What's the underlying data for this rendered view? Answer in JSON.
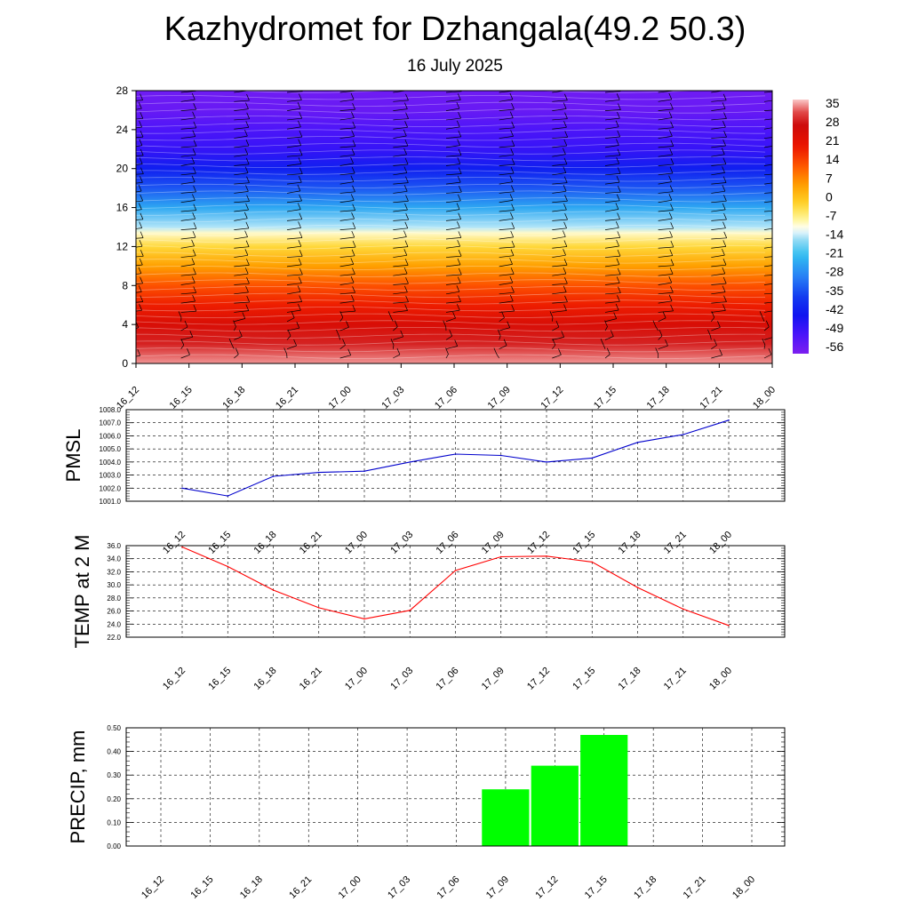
{
  "page": {
    "title": "Kazhydromet for Dzhangala(49.2 50.3)",
    "subtitle": "16 July 2025"
  },
  "time_labels": [
    "16_12",
    "16_15",
    "16_18",
    "16_21",
    "17_00",
    "17_03",
    "17_06",
    "17_09",
    "17_12",
    "17_15",
    "17_18",
    "17_21",
    "18_00"
  ],
  "colors": {
    "pmsl_line": "#0000cc",
    "temp_line": "#ff0000",
    "precip_bar": "#00ff00",
    "grid": "#000000"
  },
  "chart_data": [
    {
      "type": "heatmap",
      "title": "",
      "xlabel": "",
      "ylabel": "",
      "x": [
        "16_12",
        "16_15",
        "16_18",
        "16_21",
        "17_00",
        "17_03",
        "17_06",
        "17_09",
        "17_12",
        "17_15",
        "17_18",
        "17_21",
        "18_00"
      ],
      "ylim": [
        0,
        28
      ],
      "yticks": [
        0,
        4,
        8,
        12,
        16,
        20,
        24,
        28
      ],
      "colorbar": {
        "labels": [
          "35",
          "28",
          "21",
          "14",
          "7",
          "0",
          "-7",
          "-14",
          "-21",
          "-28",
          "-35",
          "-42",
          "-49",
          "-56"
        ],
        "range": [
          -60,
          38
        ]
      },
      "temperature_profile": [
        {
          "level": 0,
          "value": 36
        },
        {
          "level": 2,
          "value": 30
        },
        {
          "level": 4,
          "value": 25
        },
        {
          "level": 6,
          "value": 19
        },
        {
          "level": 8,
          "value": 13
        },
        {
          "level": 10,
          "value": 5
        },
        {
          "level": 12,
          "value": -3
        },
        {
          "level": 13.4,
          "value": -10
        },
        {
          "level": 14,
          "value": -15
        },
        {
          "level": 16,
          "value": -25
        },
        {
          "level": 18,
          "value": -35
        },
        {
          "level": 20,
          "value": -43
        },
        {
          "level": 22,
          "value": -50
        },
        {
          "level": 24,
          "value": -53
        },
        {
          "level": 26,
          "value": -57
        },
        {
          "level": 28,
          "value": -58
        }
      ],
      "wind_barbs": true,
      "legend": "right"
    },
    {
      "type": "line",
      "title": "",
      "xlabel": "",
      "ylabel": "PMSL",
      "categories": [
        "16_12",
        "16_15",
        "16_18",
        "16_21",
        "17_00",
        "17_03",
        "17_06",
        "17_09",
        "17_12",
        "17_15",
        "17_18",
        "17_21",
        "18_00"
      ],
      "values": [
        1002.0,
        1001.4,
        1002.9,
        1003.2,
        1003.3,
        1004.0,
        1004.6,
        1004.5,
        1004.0,
        1004.3,
        1005.5,
        1006.1,
        1007.2
      ],
      "ylim": [
        1001.0,
        1008.0
      ],
      "yticks": [
        "1001.0",
        "1002.0",
        "1003.0",
        "1004.0",
        "1005.0",
        "1006.0",
        "1007.0",
        "1008.0"
      ],
      "grid": true
    },
    {
      "type": "line",
      "title": "",
      "xlabel": "",
      "ylabel": "TEMP at 2 M",
      "categories": [
        "16_12",
        "16_15",
        "16_18",
        "16_21",
        "17_00",
        "17_03",
        "17_06",
        "17_09",
        "17_12",
        "17_15",
        "17_18",
        "17_21",
        "18_00"
      ],
      "values": [
        35.8,
        32.8,
        29.2,
        26.5,
        24.8,
        26.1,
        32.2,
        34.3,
        34.4,
        33.5,
        29.6,
        26.3,
        23.8
      ],
      "ylim": [
        22.0,
        36.0
      ],
      "yticks": [
        "22.0",
        "24.0",
        "26.0",
        "28.0",
        "30.0",
        "32.0",
        "34.0",
        "36.0"
      ],
      "grid": true
    },
    {
      "type": "bar",
      "title": "",
      "xlabel": "",
      "ylabel": "PRECIP, mm",
      "categories": [
        "16_12",
        "16_15",
        "16_18",
        "16_21",
        "17_00",
        "17_03",
        "17_06",
        "17_09",
        "17_12",
        "17_15",
        "17_18",
        "17_21",
        "18_00"
      ],
      "values": [
        0,
        0,
        0,
        0,
        0,
        0,
        0,
        0.24,
        0.34,
        0.47,
        0,
        0,
        0
      ],
      "ylim": [
        0,
        0.5
      ],
      "yticks": [
        "0.00",
        "0.10",
        "0.20",
        "0.30",
        "0.40",
        "0.50"
      ],
      "grid": true
    }
  ]
}
